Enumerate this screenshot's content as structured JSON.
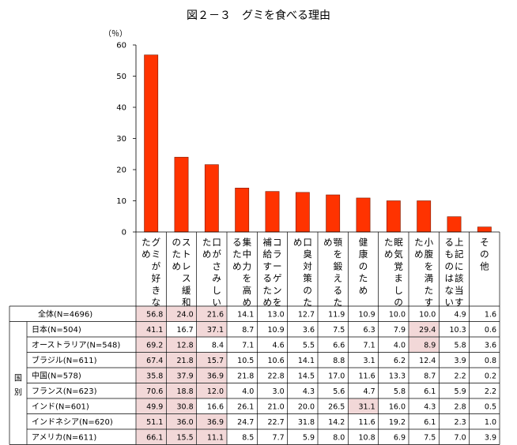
{
  "chart_data": {
    "type": "bar",
    "title": "図２－３　グミを食べる理由",
    "ylabel": "（％）",
    "ylim": [
      0,
      60
    ],
    "yticks": [
      0,
      10,
      20,
      30,
      40,
      50,
      60
    ],
    "bar_color": "#ff3300",
    "highlight_color": "#f2d8d8",
    "categories": [
      "グミが好きなため",
      "ストレス緩和のため",
      "口がさみしいため",
      "集中力を高めるため",
      "コラーゲンを補給するため",
      "口臭対策のため",
      "顎を鍛えるため",
      "健康のため",
      "眠気覚ましのため",
      "小腹を満たすため",
      "上記に該当するものはない",
      "その他"
    ],
    "values": [
      56.8,
      24.0,
      21.6,
      14.1,
      13.0,
      12.7,
      11.9,
      10.9,
      10.0,
      10.0,
      4.9,
      1.6
    ],
    "group_label": "国別",
    "table": [
      {
        "label": "全体(N=4696)",
        "values": [
          "56.8",
          "24.0",
          "21.6",
          "14.1",
          "13.0",
          "12.7",
          "11.9",
          "10.9",
          "10.0",
          "10.0",
          "4.9",
          "1.6"
        ],
        "highlight": [
          0,
          1,
          2
        ]
      },
      {
        "label": "日本(N=504)",
        "values": [
          "41.1",
          "16.7",
          "37.1",
          "8.7",
          "10.9",
          "3.6",
          "7.5",
          "6.3",
          "7.9",
          "29.4",
          "10.3",
          "0.6"
        ],
        "highlight": [
          0,
          2,
          9
        ]
      },
      {
        "label": "オーストラリア(N=548)",
        "values": [
          "69.2",
          "12.8",
          "8.4",
          "7.1",
          "4.6",
          "5.5",
          "6.6",
          "7.1",
          "4.0",
          "8.9",
          "5.8",
          "3.6"
        ],
        "highlight": [
          0,
          1,
          9
        ]
      },
      {
        "label": "ブラジル(N=611)",
        "values": [
          "67.4",
          "21.8",
          "15.7",
          "10.5",
          "10.6",
          "14.1",
          "8.8",
          "3.1",
          "6.2",
          "12.4",
          "3.9",
          "0.8"
        ],
        "highlight": [
          0,
          1,
          2
        ]
      },
      {
        "label": "中国(N=578)",
        "values": [
          "35.8",
          "37.9",
          "36.9",
          "21.8",
          "22.8",
          "14.5",
          "17.0",
          "11.6",
          "13.3",
          "8.7",
          "2.2",
          "0.2"
        ],
        "highlight": [
          0,
          1,
          2
        ]
      },
      {
        "label": "フランス(N=623)",
        "values": [
          "70.6",
          "18.8",
          "12.0",
          "4.0",
          "3.0",
          "4.3",
          "5.6",
          "4.7",
          "5.8",
          "6.1",
          "5.9",
          "2.2"
        ],
        "highlight": [
          0,
          1,
          2
        ]
      },
      {
        "label": "インド(N=601)",
        "values": [
          "49.9",
          "30.8",
          "16.6",
          "26.1",
          "21.0",
          "20.0",
          "26.5",
          "31.1",
          "16.0",
          "4.3",
          "2.8",
          "0.5"
        ],
        "highlight": [
          0,
          1,
          7
        ]
      },
      {
        "label": "インドネシア(N=620)",
        "values": [
          "51.1",
          "36.0",
          "36.9",
          "24.7",
          "22.7",
          "31.8",
          "14.2",
          "11.6",
          "19.2",
          "6.1",
          "2.3",
          "1.0"
        ],
        "highlight": [
          0,
          1,
          2
        ]
      },
      {
        "label": "アメリカ(N=611)",
        "values": [
          "66.1",
          "15.5",
          "11.1",
          "8.5",
          "7.7",
          "5.9",
          "8.0",
          "10.8",
          "6.9",
          "7.5",
          "7.0",
          "3.9"
        ],
        "highlight": [
          0,
          1,
          2
        ]
      }
    ]
  }
}
